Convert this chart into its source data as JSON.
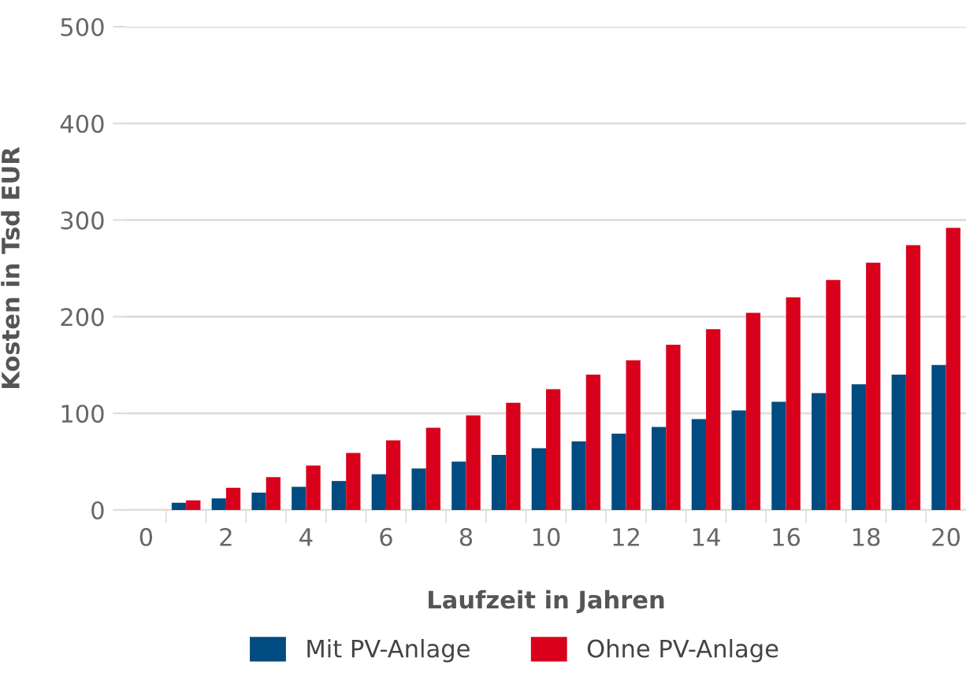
{
  "chart_data": {
    "type": "bar",
    "xlabel": "Laufzeit in Jahren",
    "ylabel": "Kosten in Tsd EUR",
    "categories": [
      "0",
      null,
      "2",
      null,
      "4",
      null,
      "6",
      null,
      "8",
      null,
      "10",
      null,
      "12",
      null,
      "14",
      null,
      "16",
      null,
      "18",
      null,
      "20"
    ],
    "series": [
      {
        "name": "Mit PV-Anlage",
        "color": "#004b7f",
        "values": [
          null,
          7.5,
          12,
          18,
          24,
          30,
          37,
          43,
          50,
          57,
          64,
          71,
          79,
          86,
          94,
          103,
          112,
          121,
          130,
          140,
          150
        ]
      },
      {
        "name": "Ohne PV-Anlage",
        "color": "#d9001b",
        "values": [
          null,
          10,
          23,
          34,
          46,
          59,
          72,
          85,
          98,
          111,
          125,
          140,
          155,
          171,
          187,
          204,
          220,
          238,
          256,
          274,
          292
        ]
      }
    ],
    "ylim": [
      0,
      500
    ],
    "yticks": [
      0,
      100,
      200,
      300,
      400,
      500
    ],
    "grid": "y",
    "legend": "bottom"
  }
}
